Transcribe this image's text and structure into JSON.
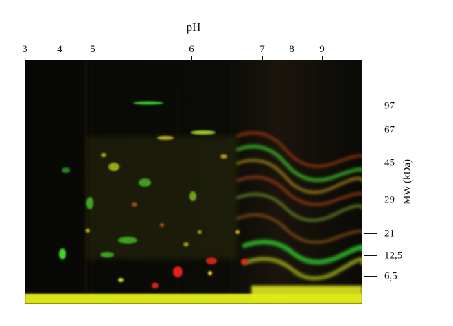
{
  "figure": {
    "x_axis_title": "pH",
    "y_axis_title": "MW (kDa)",
    "ph_ticks": [
      "3",
      "4",
      "5",
      "6",
      "7",
      "8",
      "9"
    ],
    "mw_ticks": [
      "97",
      "67",
      "45",
      "29",
      "21",
      "12,5",
      "6,5"
    ]
  }
}
